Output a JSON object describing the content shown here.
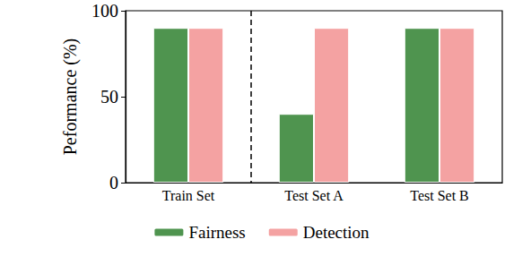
{
  "chart_data": {
    "type": "bar",
    "y_label": "Peformance (%)",
    "categories": [
      "Train Set",
      "Test Set A",
      "Test Set B"
    ],
    "series": [
      {
        "name": "Fairness",
        "color": "#4f944f",
        "values": [
          90,
          40,
          90
        ]
      },
      {
        "name": "Detection",
        "color": "#f4a2a2",
        "values": [
          90,
          90,
          90
        ]
      }
    ],
    "ylim": [
      0,
      100
    ],
    "yticks": [
      0,
      50,
      100
    ],
    "grid": false,
    "legend": "bottom"
  }
}
